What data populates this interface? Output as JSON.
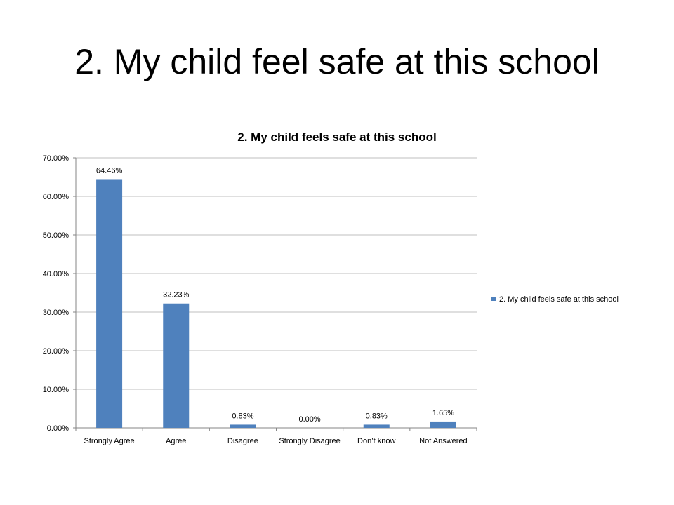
{
  "slide": {
    "title": "2. My child feel safe at this school"
  },
  "colors": {
    "bar": "#4f81bd",
    "grid": "#bfbfbf",
    "axis": "#868686"
  },
  "chart_data": {
    "type": "bar",
    "title": "2. My child feels safe at this school",
    "xlabel": "",
    "ylabel": "",
    "categories": [
      "Strongly Agree",
      "Agree",
      "Disagree",
      "Strongly Disagree",
      "Don’t know",
      "Not Answered"
    ],
    "series": [
      {
        "name": "2. My child feels safe at this school",
        "values": [
          64.46,
          32.23,
          0.83,
          0.0,
          0.83,
          1.65
        ],
        "labels": [
          "64.46%",
          "32.23%",
          "0.83%",
          "0.00%",
          "0.83%",
          "1.65%"
        ]
      }
    ],
    "ylim": [
      0,
      70
    ],
    "yticks": [
      0,
      10,
      20,
      30,
      40,
      50,
      60,
      70
    ],
    "ytick_labels": [
      "0.00%",
      "10.00%",
      "20.00%",
      "30.00%",
      "40.00%",
      "50.00%",
      "60.00%",
      "70.00%"
    ],
    "grid": true,
    "legend_position": "right"
  }
}
